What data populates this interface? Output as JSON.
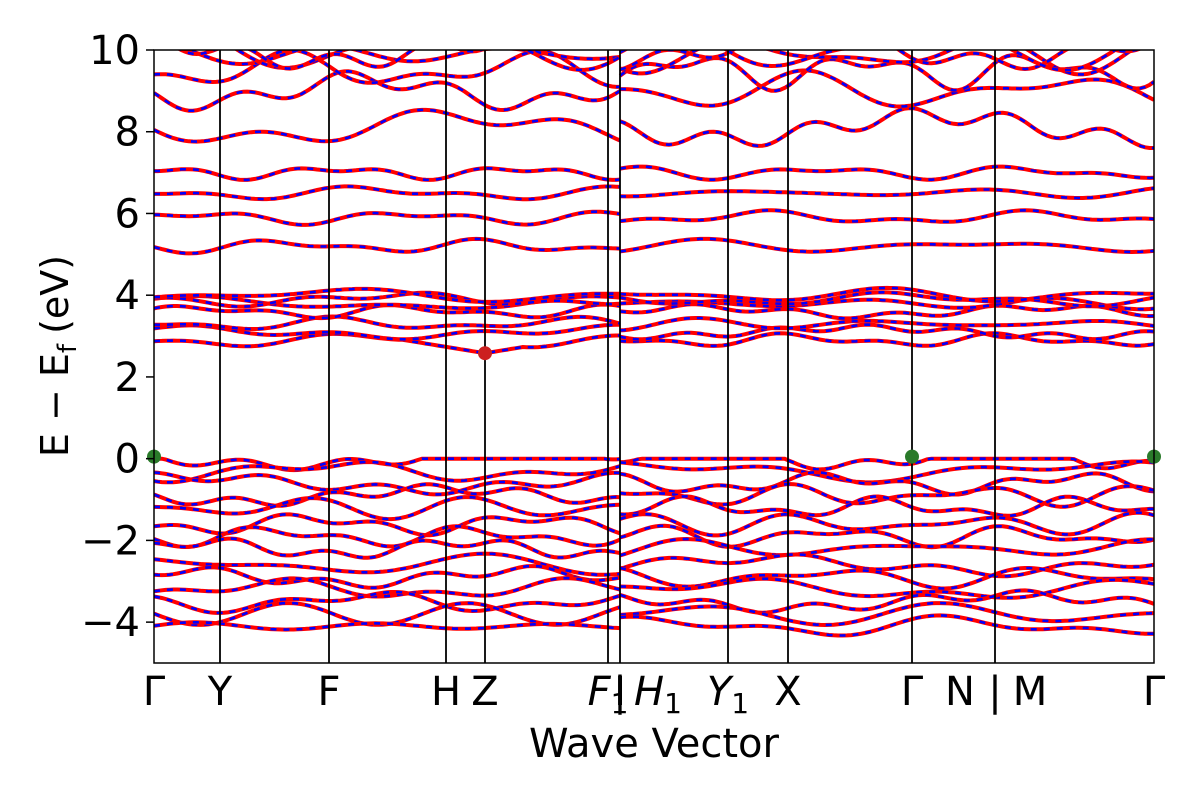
{
  "chart_data": {
    "type": "line",
    "title": "",
    "xlabel": "Wave Vector",
    "ylabel_parts": {
      "main": "E − E",
      "sub": "f",
      "unit": "(eV)"
    },
    "ylim": [
      -5,
      10
    ],
    "yticks": [
      -4,
      -2,
      0,
      2,
      4,
      6,
      8,
      10
    ],
    "ytick_labels": [
      "−4",
      "−2",
      "0",
      "2",
      "4",
      "6",
      "8",
      "10"
    ],
    "xlim": [
      0,
      1
    ],
    "kpoints": [
      {
        "label": "Γ",
        "x": 0.0
      },
      {
        "label": "Y",
        "x": 0.066
      },
      {
        "label": "F",
        "x": 0.175
      },
      {
        "label": "H",
        "x": 0.292
      },
      {
        "label": "Z",
        "x": 0.331
      },
      {
        "label": "F",
        "sub": "1",
        "x": 0.454
      },
      {
        "label": "I",
        "x": 0.466
      },
      {
        "label": "|",
        "x": 0.466
      },
      {
        "label": "H",
        "sub": "1",
        "x": 0.504
      },
      {
        "label": "Y",
        "sub": "1",
        "x": 0.574
      },
      {
        "label": "X",
        "x": 0.634
      },
      {
        "label": "Γ",
        "x": 0.758
      },
      {
        "label": "N",
        "x": 0.806
      },
      {
        "label": "|",
        "x": 0.841
      },
      {
        "label": "M",
        "x": 0.876
      },
      {
        "label": "Γ",
        "x": 1.0
      }
    ],
    "vlines": [
      0.066,
      0.175,
      0.292,
      0.331,
      0.454,
      0.466,
      0.574,
      0.634,
      0.758,
      0.841
    ],
    "series": [
      {
        "name": "",
        "color": "#ff0000",
        "style": "solid"
      },
      {
        "name": "",
        "color": "#0000ff",
        "style": "dashed"
      }
    ],
    "band_groups": [
      {
        "kind": "conduction-high",
        "levels": [
          8.1,
          9.0,
          9.5,
          9.9,
          10.0,
          10.0
        ]
      },
      {
        "kind": "conduction-mid",
        "levels": [
          5.2,
          5.9,
          6.5,
          7.0
        ]
      },
      {
        "kind": "conduction-low",
        "levels": [
          2.9,
          3.1,
          3.3,
          3.6,
          3.8,
          3.9,
          4.0
        ]
      },
      {
        "kind": "valence",
        "levels": [
          0.0,
          -0.3,
          -0.6,
          -0.9,
          -1.2,
          -1.6,
          -1.9,
          -2.2,
          -2.6,
          -2.9,
          -3.2,
          -3.5,
          -3.8,
          -4.1
        ]
      }
    ],
    "markers": [
      {
        "x": 0.0,
        "y": 0.05,
        "color": "#2a7a2a",
        "label": "VBM"
      },
      {
        "x": 0.758,
        "y": 0.05,
        "color": "#2a7a2a",
        "label": "VBM"
      },
      {
        "x": 1.0,
        "y": 0.05,
        "color": "#2a7a2a",
        "label": "VBM"
      },
      {
        "x": 0.331,
        "y": 2.58,
        "color": "#cc2020",
        "label": "CBM"
      }
    ],
    "grid": false,
    "legend": "none"
  }
}
